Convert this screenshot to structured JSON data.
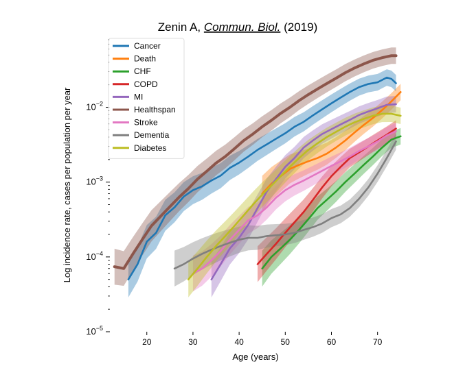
{
  "chart_data": {
    "type": "line",
    "title": {
      "author": "Zenin A,",
      "journal": "Commun. Biol.",
      "year": "(2019)"
    },
    "xlabel": "Age (years)",
    "ylabel": "Log incidence rate, cases per population per year",
    "y_scale": "log",
    "xlim": [
      12,
      76
    ],
    "ylim": [
      1e-05,
      0.08
    ],
    "x_ticks": [
      20,
      30,
      40,
      50,
      60,
      70
    ],
    "y_ticks": [
      {
        "value": 1e-05,
        "base": "10",
        "exp": "−5"
      },
      {
        "value": 0.0001,
        "base": "10",
        "exp": "−4"
      },
      {
        "value": 0.001,
        "base": "10",
        "exp": "−3"
      },
      {
        "value": 0.01,
        "base": "10",
        "exp": "−2"
      }
    ],
    "grid": false,
    "legend_position": "top-left",
    "band": "shaded confidence band around each series",
    "series": [
      {
        "name": "Cancer",
        "color": "#1f77b4",
        "x": [
          16,
          18,
          20,
          22,
          24,
          26,
          28,
          30,
          32,
          34,
          36,
          38,
          40,
          42,
          44,
          46,
          48,
          50,
          52,
          54,
          56,
          58,
          60,
          62,
          64,
          66,
          68,
          70,
          72,
          73,
          74
        ],
        "y": [
          5e-05,
          8e-05,
          0.00016,
          0.00021,
          0.00036,
          0.00046,
          0.00064,
          0.00078,
          0.00088,
          0.00105,
          0.00122,
          0.00155,
          0.00182,
          0.0022,
          0.0027,
          0.0032,
          0.0038,
          0.0045,
          0.0055,
          0.0064,
          0.0078,
          0.0094,
          0.0113,
          0.0135,
          0.016,
          0.0186,
          0.0205,
          0.0216,
          0.025,
          0.024,
          0.021
        ]
      },
      {
        "name": "Death",
        "color": "#ff7f0e",
        "x": [
          45,
          47,
          49,
          51,
          53,
          55,
          57,
          59,
          61,
          63,
          65,
          67,
          69,
          71,
          73,
          75
        ],
        "y": [
          0.0007,
          0.00095,
          0.0012,
          0.0015,
          0.0017,
          0.0019,
          0.0021,
          0.0024,
          0.0029,
          0.0036,
          0.0046,
          0.0058,
          0.0072,
          0.0092,
          0.012,
          0.016
        ]
      },
      {
        "name": "CHF",
        "color": "#2ca02c",
        "x": [
          45,
          47,
          49,
          51,
          53,
          55,
          57,
          59,
          61,
          63,
          65,
          67,
          69,
          71,
          73,
          75
        ],
        "y": [
          7e-05,
          0.0001,
          0.00013,
          0.00017,
          0.00023,
          0.00032,
          0.00045,
          0.00058,
          0.00075,
          0.001,
          0.0013,
          0.0017,
          0.0022,
          0.0029,
          0.0037,
          0.0041
        ]
      },
      {
        "name": "COPD",
        "color": "#d62728",
        "x": [
          44,
          46,
          48,
          50,
          52,
          54,
          56,
          58,
          60,
          62,
          64,
          66,
          68,
          70,
          72,
          74
        ],
        "y": [
          8e-05,
          0.00011,
          0.00015,
          0.00021,
          0.00029,
          0.0004,
          0.00058,
          0.00085,
          0.0012,
          0.0016,
          0.0021,
          0.0025,
          0.003,
          0.0036,
          0.0043,
          0.0052
        ]
      },
      {
        "name": "MI",
        "color": "#9467bd",
        "x": [
          34,
          36,
          38,
          40,
          42,
          44,
          46,
          48,
          50,
          52,
          54,
          56,
          58,
          60,
          62,
          64,
          66,
          68,
          70,
          72,
          74
        ],
        "y": [
          5e-05,
          8e-05,
          0.00013,
          0.00018,
          0.00027,
          0.00045,
          0.00075,
          0.0011,
          0.0016,
          0.0021,
          0.0029,
          0.0036,
          0.0044,
          0.0051,
          0.0059,
          0.0068,
          0.0079,
          0.0088,
          0.0097,
          0.0108,
          0.011
        ]
      },
      {
        "name": "Healthspan",
        "color": "#8c564b",
        "x": [
          13,
          15,
          17,
          19,
          21,
          23,
          25,
          27,
          29,
          31,
          33,
          35,
          37,
          39,
          41,
          43,
          45,
          47,
          49,
          51,
          53,
          55,
          57,
          59,
          61,
          63,
          65,
          67,
          69,
          71,
          73,
          74
        ],
        "y": [
          7.4e-05,
          7e-05,
          0.00011,
          0.00017,
          0.00026,
          0.00035,
          0.00047,
          0.00063,
          0.00082,
          0.0011,
          0.0014,
          0.0018,
          0.0022,
          0.0028,
          0.0036,
          0.0044,
          0.0055,
          0.0067,
          0.0083,
          0.01,
          0.0123,
          0.0148,
          0.0176,
          0.0208,
          0.0245,
          0.029,
          0.0335,
          0.038,
          0.0425,
          0.046,
          0.049,
          0.049
        ]
      },
      {
        "name": "Stroke",
        "color": "#e377c2",
        "x": [
          30,
          32,
          34,
          36,
          38,
          40,
          42,
          44,
          46,
          48,
          50,
          52,
          54,
          56,
          58,
          60,
          62,
          64,
          66,
          68,
          70,
          72,
          74
        ],
        "y": [
          6e-05,
          7e-05,
          9e-05,
          0.00012,
          0.00017,
          0.00023,
          0.00031,
          0.00036,
          0.00046,
          0.00062,
          0.00078,
          0.00092,
          0.00105,
          0.00122,
          0.00142,
          0.00165,
          0.0019,
          0.0022,
          0.0026,
          0.003,
          0.0035,
          0.0042,
          0.0048
        ]
      },
      {
        "name": "Dementia",
        "color": "#7f7f7f",
        "x": [
          26,
          28,
          30,
          32,
          34,
          36,
          38,
          40,
          42,
          44,
          46,
          48,
          50,
          52,
          54,
          56,
          58,
          60,
          62,
          64,
          66,
          68,
          70,
          72,
          74
        ],
        "y": [
          7e-05,
          8e-05,
          9.5e-05,
          0.00011,
          0.000125,
          0.00014,
          0.000155,
          0.00017,
          0.00018,
          0.00018,
          0.00019,
          0.000195,
          0.0002,
          0.00021,
          0.00023,
          0.00025,
          0.00028,
          0.00033,
          0.00037,
          0.00045,
          0.0006,
          0.00085,
          0.0013,
          0.0021,
          0.0035
        ]
      },
      {
        "name": "Diabetes",
        "color": "#bcbd22",
        "x": [
          29,
          31,
          33,
          35,
          37,
          39,
          41,
          43,
          45,
          47,
          49,
          51,
          53,
          55,
          57,
          59,
          61,
          63,
          65,
          67,
          69,
          71,
          73,
          75
        ],
        "y": [
          5e-05,
          7e-05,
          0.0001,
          0.00014,
          0.00019,
          0.00026,
          0.00036,
          0.0005,
          0.00068,
          0.0009,
          0.0012,
          0.0016,
          0.0021,
          0.0027,
          0.0033,
          0.004,
          0.0047,
          0.0055,
          0.0063,
          0.007,
          0.0077,
          0.0082,
          0.0082,
          0.0077
        ]
      }
    ]
  }
}
